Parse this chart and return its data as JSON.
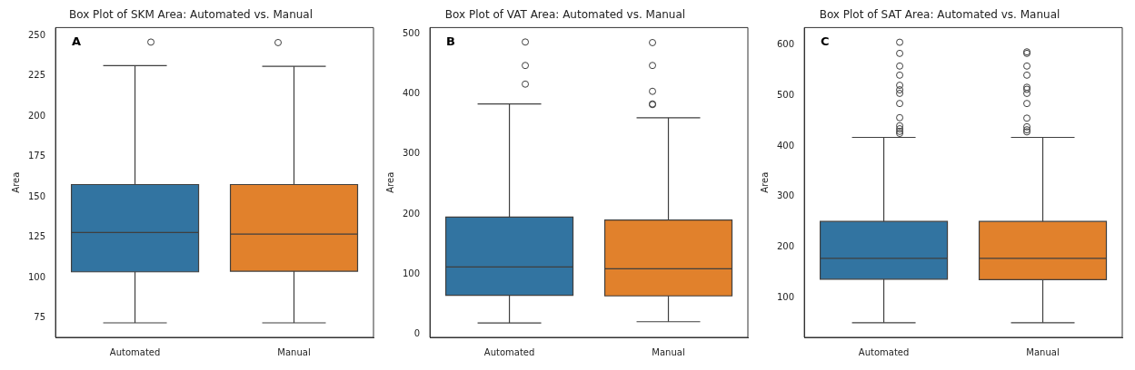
{
  "chart_data": [
    {
      "type": "box",
      "title": "Box Plot of SKM Area: Automated vs. Manual",
      "ylabel": "Area",
      "annotations": [
        "A"
      ],
      "categories": [
        "Automated",
        "Manual"
      ],
      "colors": [
        "#3274a1",
        "#e1812c"
      ],
      "ylim": [
        63,
        255
      ],
      "yticks": [
        75,
        100,
        125,
        150,
        175,
        200,
        225,
        250
      ],
      "grid": false,
      "legend": false,
      "marker": "circle",
      "boxes": [
        {
          "low": 72,
          "q1": 103.6,
          "median": 128,
          "q3": 157.7,
          "high": 231.4,
          "outliers": [
            246
          ]
        },
        {
          "low": 72,
          "q1": 104,
          "median": 127,
          "q3": 157.7,
          "high": 231,
          "outliers": [
            245.7
          ]
        }
      ]
    },
    {
      "type": "box",
      "title": "Box Plot of VAT Area: Automated vs. Manual",
      "ylabel": "Area",
      "annotations": [
        "B"
      ],
      "categories": [
        "Automated",
        "Manual"
      ],
      "colors": [
        "#3274a1",
        "#e1812c"
      ],
      "ylim": [
        -5,
        510
      ],
      "yticks": [
        0,
        100,
        200,
        300,
        400,
        500
      ],
      "grid": false,
      "legend": false,
      "marker": "circle",
      "boxes": [
        {
          "low": 19,
          "q1": 65,
          "median": 112,
          "q3": 195,
          "high": 383,
          "outliers": [
            486,
            447,
            416
          ]
        },
        {
          "low": 21,
          "q1": 64,
          "median": 109,
          "q3": 190,
          "high": 360,
          "outliers": [
            485,
            447,
            404,
            383,
            382
          ]
        }
      ]
    },
    {
      "type": "box",
      "title": "Box Plot of SAT Area: Automated vs. Manual",
      "ylabel": "Area",
      "annotations": [
        "C"
      ],
      "categories": [
        "Automated",
        "Manual"
      ],
      "colors": [
        "#3274a1",
        "#e1812c"
      ],
      "ylim": [
        22,
        634
      ],
      "yticks": [
        100,
        200,
        300,
        400,
        500,
        600
      ],
      "grid": false,
      "legend": false,
      "marker": "circle",
      "boxes": [
        {
          "low": 51,
          "q1": 137,
          "median": 178,
          "q3": 251,
          "high": 417,
          "outliers": [
            605,
            583,
            558,
            540,
            520,
            511,
            504,
            484,
            456,
            440,
            434,
            429,
            425
          ]
        },
        {
          "low": 51,
          "q1": 136,
          "median": 178,
          "q3": 251,
          "high": 417,
          "outliers": [
            586,
            583,
            558,
            540,
            516,
            512,
            504,
            484,
            455,
            438,
            432,
            428
          ]
        }
      ]
    }
  ]
}
